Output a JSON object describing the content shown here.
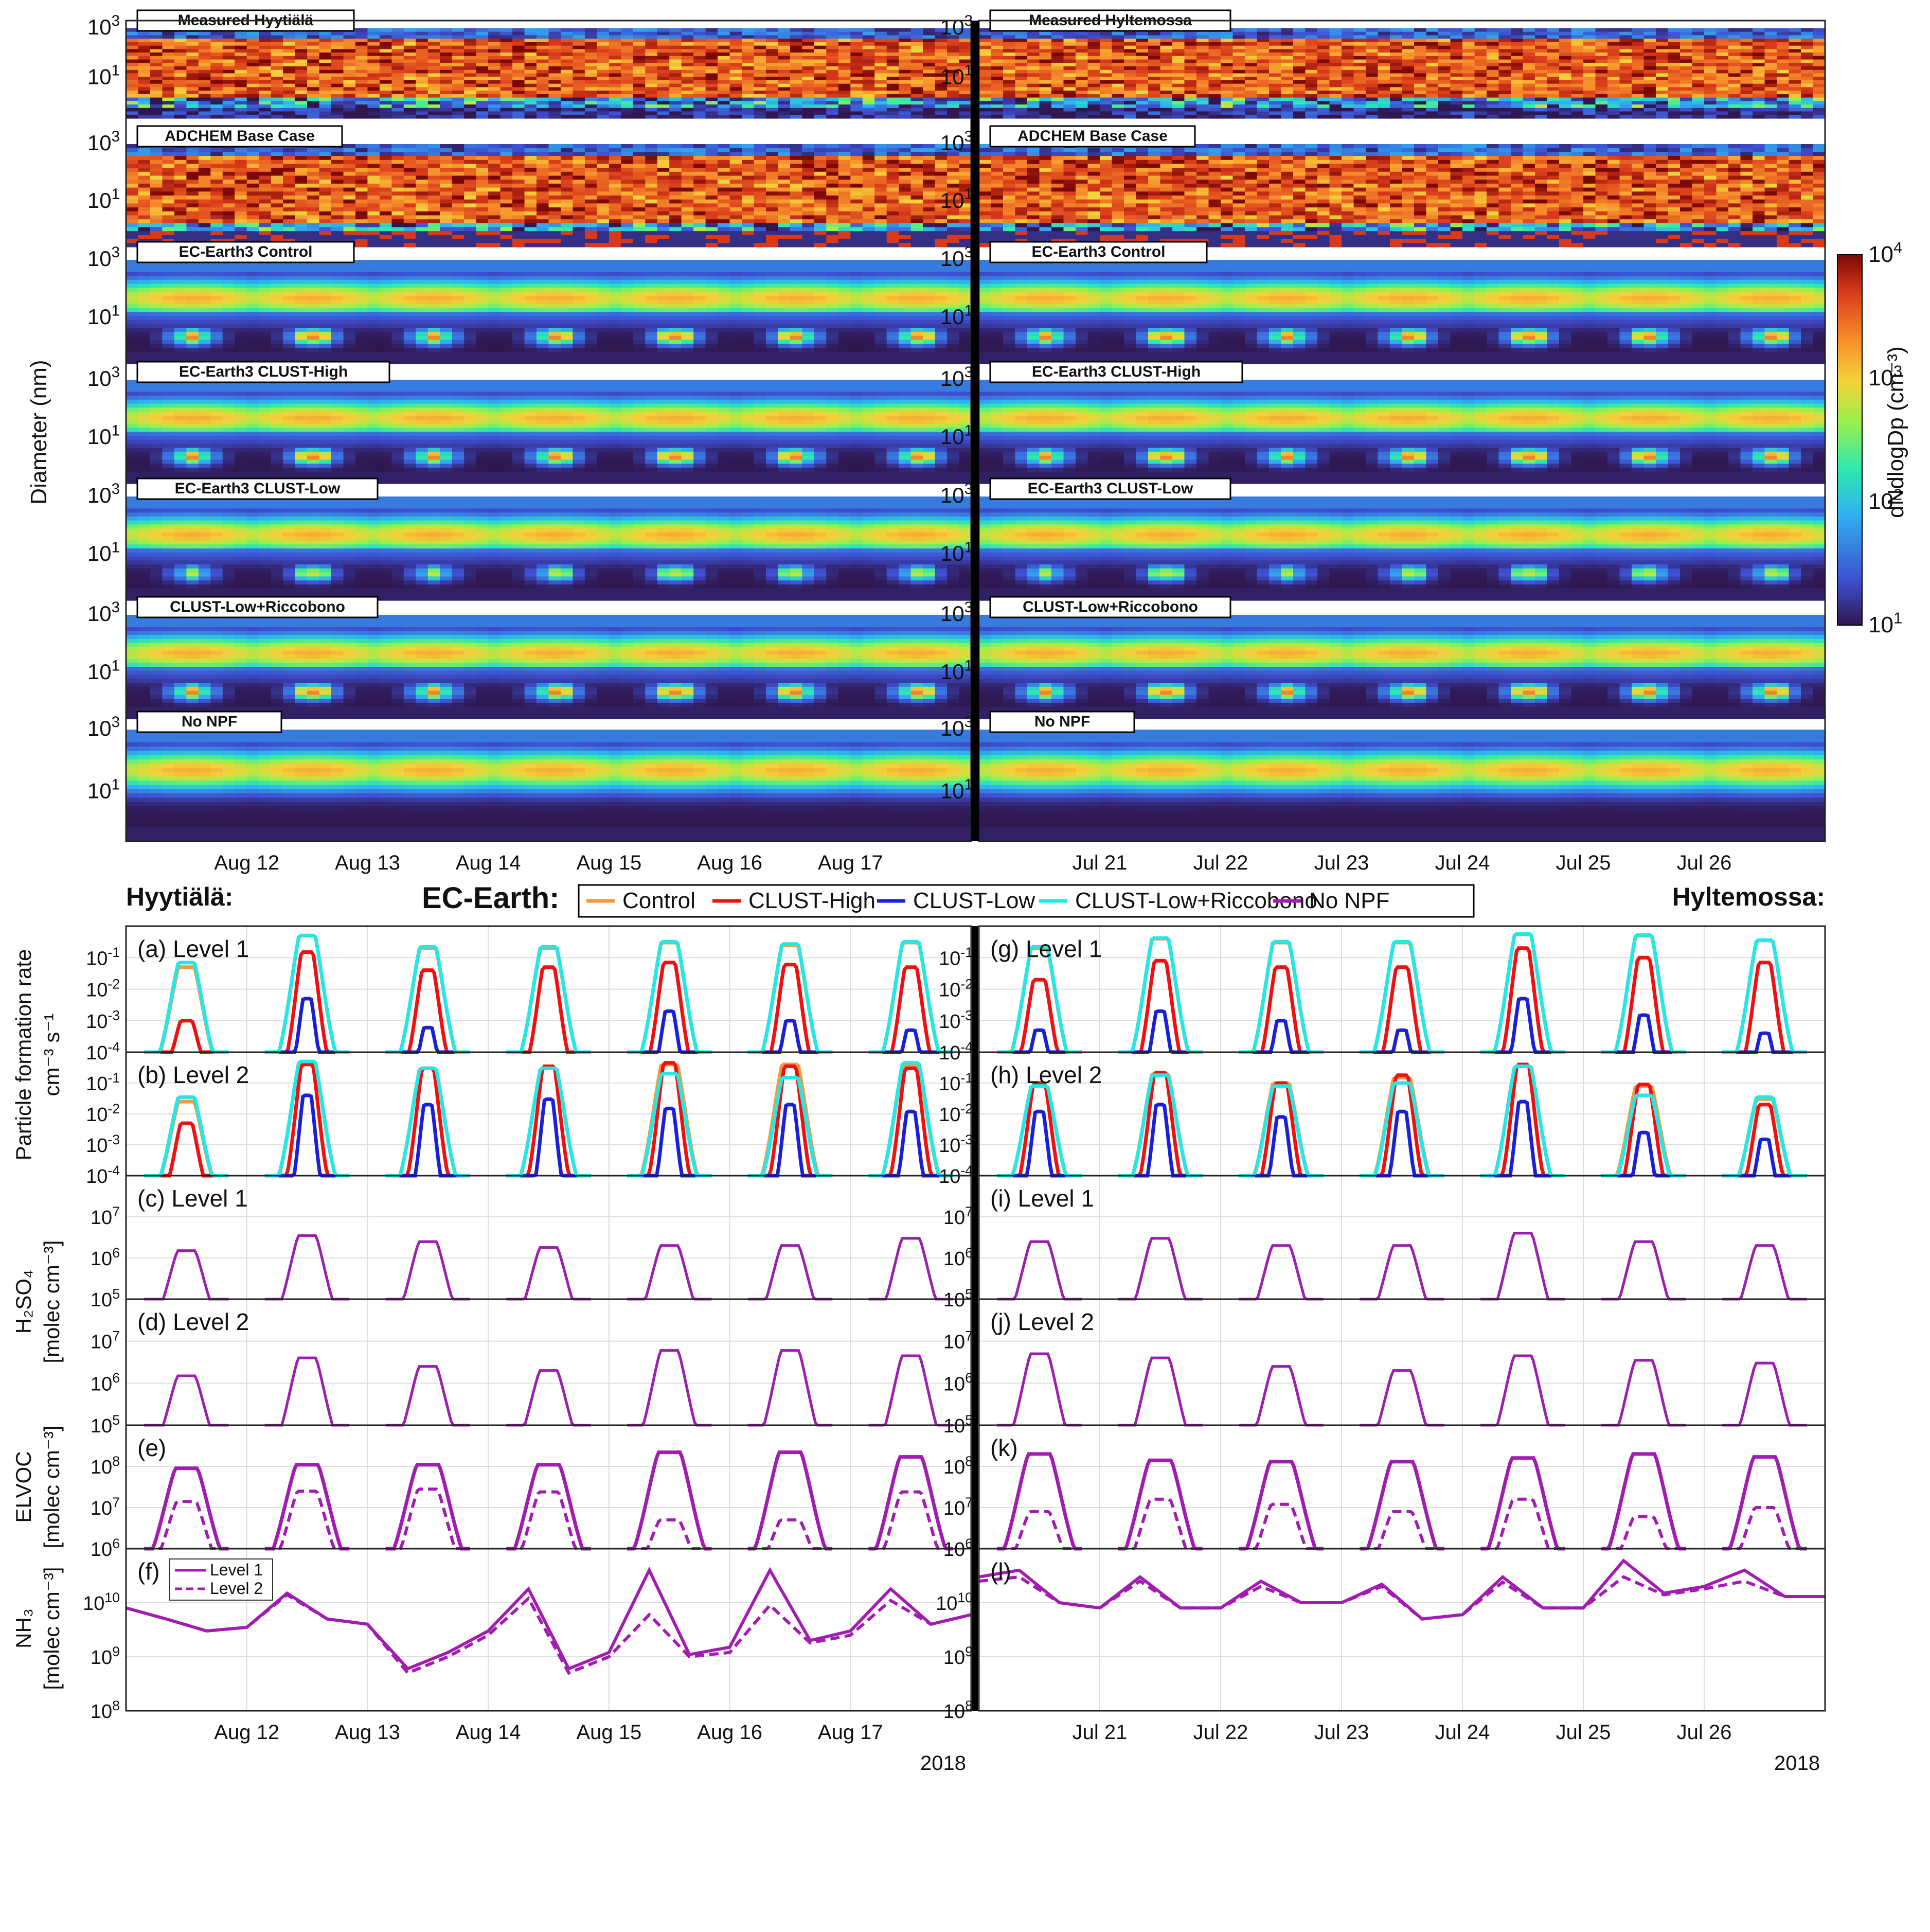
{
  "colorbar": {
    "label": "dNdlogDp (cm⁻³)",
    "ticks": [
      "10^1",
      "10^2",
      "10^3",
      "10^4"
    ],
    "range": [
      1,
      4
    ]
  },
  "colors": {
    "Control": "#f39a3c",
    "CLUST-High": "#ee1111",
    "CLUST-Low": "#1a20d8",
    "CLUST-Low+Riccobono": "#27e6e6",
    "No NPF": "#a21cb2",
    "background": "#2f1750"
  },
  "sites": {
    "left_title": "Hyytiälä:",
    "right_title": "Hyltemossa:"
  },
  "heatmaps": {
    "ylabel": "Diameter (nm)",
    "yticks": [
      "10^3",
      "10^1"
    ],
    "left_panels": [
      "Measured Hyytiälä",
      "ADCHEM Base Case",
      "EC-Earth3 Control",
      "EC-Earth3 CLUST-High",
      "EC-Earth3 CLUST-Low",
      "CLUST-Low+Riccobono",
      "No NPF"
    ],
    "right_panels": [
      "Measured Hyltemossa",
      "ADCHEM Base Case",
      "EC-Earth3 Control",
      "EC-Earth3 CLUST-High",
      "EC-Earth3 CLUST-Low",
      "CLUST-Low+Riccobono",
      "No NPF"
    ],
    "left_xticks": [
      "Aug 12",
      "Aug 13",
      "Aug 14",
      "Aug 15",
      "Aug 16",
      "Aug 17"
    ],
    "right_xticks": [
      "Jul 21",
      "Jul 22",
      "Jul 23",
      "Jul 24",
      "Jul 25",
      "Jul 26"
    ]
  },
  "legend": {
    "title": "EC-Earth:",
    "entries": [
      "Control",
      "CLUST-High",
      "CLUST-Low",
      "CLUST-Low+Riccobono",
      "No NPF"
    ]
  },
  "chart_data": [
    {
      "type": "line",
      "group": "Particle formation rate",
      "ylabel": "Particle formation rate",
      "yunit": "cm⁻³ s⁻¹",
      "yscale": "log",
      "ylim": [
        0.0001,
        1
      ],
      "yticks": [
        "10^-1",
        "10^-2",
        "10^-3",
        "10^-4"
      ],
      "panels": [
        {
          "label": "(a)  Level 1",
          "side": "left",
          "peaks": {
            "Control": [
              0.05,
              0.5,
              0.2,
              0.2,
              0.3,
              0.25,
              0.3
            ],
            "CLUST-High": [
              0.001,
              0.15,
              0.04,
              0.05,
              0.07,
              0.06,
              0.05
            ],
            "CLUST-Low": [
              null,
              0.005,
              0.0006,
              null,
              0.002,
              0.001,
              0.0005
            ],
            "CLUST-Low+Riccobono": [
              0.07,
              0.5,
              0.22,
              0.22,
              0.32,
              0.27,
              0.32
            ]
          }
        },
        {
          "label": "(g)  Level 1",
          "side": "right",
          "peaks": {
            "Control": [
              0.2,
              0.4,
              0.3,
              0.3,
              0.55,
              0.5,
              0.35
            ],
            "CLUST-High": [
              0.02,
              0.08,
              0.05,
              0.05,
              0.2,
              0.1,
              0.07
            ],
            "CLUST-Low": [
              0.0005,
              0.002,
              0.001,
              0.0005,
              0.005,
              0.0015,
              0.0004
            ],
            "CLUST-Low+Riccobono": [
              0.22,
              0.42,
              0.32,
              0.32,
              0.57,
              0.52,
              0.36
            ]
          }
        },
        {
          "label": "(b)  Level 2",
          "side": "left",
          "peaks": {
            "Control": [
              0.025,
              0.45,
              0.3,
              0.3,
              0.4,
              0.4,
              0.35
            ],
            "CLUST-High": [
              0.005,
              0.4,
              0.3,
              0.35,
              0.45,
              0.35,
              0.3
            ],
            "CLUST-Low": [
              null,
              0.04,
              0.02,
              0.03,
              0.015,
              0.02,
              0.012
            ],
            "CLUST-Low+Riccobono": [
              0.035,
              0.5,
              0.3,
              0.3,
              0.2,
              0.15,
              0.45
            ]
          }
        },
        {
          "label": "(h)  Level 2",
          "side": "right",
          "peaks": {
            "Control": [
              0.08,
              0.2,
              0.1,
              0.15,
              0.35,
              0.08,
              0.03
            ],
            "CLUST-High": [
              0.1,
              0.22,
              0.1,
              0.18,
              0.4,
              0.09,
              0.02
            ],
            "CLUST-Low": [
              0.012,
              0.02,
              0.008,
              0.012,
              0.025,
              0.0025,
              0.0015
            ],
            "CLUST-Low+Riccobono": [
              0.08,
              0.18,
              0.08,
              0.1,
              0.35,
              0.04,
              0.035
            ]
          }
        }
      ]
    },
    {
      "type": "line",
      "group": "H2SO4",
      "ylabel": "H₂SO₄",
      "yunit": "[molec cm⁻³]",
      "yscale": "log",
      "ylim": [
        100000.0,
        100000000.0
      ],
      "yticks": [
        "10^7",
        "10^6",
        "10^5"
      ],
      "panels": [
        {
          "label": "(c)  Level 1",
          "side": "left",
          "peaks": [
            1500000.0,
            3500000.0,
            2500000.0,
            1800000.0,
            2000000.0,
            2000000.0,
            3000000.0
          ]
        },
        {
          "label": "(i)  Level 1",
          "side": "right",
          "peaks": [
            2500000.0,
            3000000.0,
            2000000.0,
            2000000.0,
            4000000.0,
            2500000.0,
            2000000.0
          ]
        },
        {
          "label": "(d)  Level 2",
          "side": "left",
          "peaks": [
            1500000.0,
            4000000.0,
            2500000.0,
            2000000.0,
            6000000.0,
            6000000.0,
            4500000.0
          ]
        },
        {
          "label": "(j)  Level 2",
          "side": "right",
          "peaks": [
            5000000.0,
            4000000.0,
            2500000.0,
            2000000.0,
            4500000.0,
            3500000.0,
            3000000.0
          ]
        }
      ]
    },
    {
      "type": "line",
      "group": "ELVOC",
      "ylabel": "ELVOC",
      "yunit": "[molec cm⁻³]",
      "yscale": "log",
      "ylim": [
        1000000.0,
        1000000000.0
      ],
      "yticks": [
        "10^8",
        "10^7",
        "10^6"
      ],
      "panels": [
        {
          "label": "(e)",
          "side": "left",
          "peaks_level1": [
            90000000.0,
            110000000.0,
            110000000.0,
            110000000.0,
            220000000.0,
            220000000.0,
            170000000.0
          ],
          "peaks_level2": [
            14000000.0,
            25000000.0,
            28000000.0,
            24000000.0,
            5000000.0,
            5000000.0,
            24000000.0
          ]
        },
        {
          "label": "(k)",
          "side": "right",
          "peaks_level1": [
            200000000.0,
            140000000.0,
            130000000.0,
            130000000.0,
            160000000.0,
            200000000.0,
            170000000.0
          ],
          "peaks_level2": [
            8000000.0,
            16000000.0,
            12000000.0,
            8000000.0,
            16000000.0,
            6000000.0,
            10000000.0
          ]
        }
      ]
    },
    {
      "type": "line",
      "group": "NH3",
      "ylabel": "NH₃",
      "yunit": "[molec cm⁻³]",
      "yscale": "log",
      "ylim": [
        100000000.0,
        100000000000.0
      ],
      "yticks": [
        "10^10",
        "10^9",
        "10^8"
      ],
      "legend": [
        "Level 1",
        "Level 2"
      ],
      "panels": [
        {
          "label": "(f)",
          "side": "left",
          "level1": [
            8000000000.0,
            5000000000.0,
            3000000000.0,
            3500000000.0,
            15000000000.0,
            5000000000.0,
            4000000000.0,
            600000000.0,
            1200000000.0,
            3000000000.0,
            18000000000.0,
            600000000.0,
            1200000000.0,
            40000000000.0,
            1100000000.0,
            1500000000.0,
            40000000000.0,
            2000000000.0,
            3000000000.0,
            18000000000.0,
            4000000000.0,
            6000000000.0
          ],
          "level2": [
            8000000000.0,
            5000000000.0,
            3000000000.0,
            3500000000.0,
            14000000000.0,
            5000000000.0,
            4000000000.0,
            500000000.0,
            1000000000.0,
            2500000000.0,
            12000000000.0,
            500000000.0,
            1000000000.0,
            6000000000.0,
            1000000000.0,
            1200000000.0,
            9000000000.0,
            1800000000.0,
            2500000000.0,
            11000000000.0,
            4000000000.0,
            6000000000.0
          ]
        },
        {
          "label": "(l)",
          "side": "right",
          "level1": [
            30000000000.0,
            40000000000.0,
            10000000000.0,
            8000000000.0,
            30000000000.0,
            8000000000.0,
            8000000000.0,
            25000000000.0,
            10000000000.0,
            10000000000.0,
            22000000000.0,
            5000000000.0,
            6000000000.0,
            30000000000.0,
            8000000000.0,
            8000000000.0,
            60000000000.0,
            15000000000.0,
            20000000000.0,
            40000000000.0,
            13000000000.0,
            13000000000.0
          ],
          "level2": [
            25000000000.0,
            30000000000.0,
            10000000000.0,
            8000000000.0,
            25000000000.0,
            8000000000.0,
            8000000000.0,
            20000000000.0,
            10000000000.0,
            10000000000.0,
            20000000000.0,
            5000000000.0,
            6000000000.0,
            24000000000.0,
            8000000000.0,
            8000000000.0,
            30000000000.0,
            14000000000.0,
            18000000000.0,
            25000000000.0,
            13000000000.0,
            13000000000.0
          ]
        }
      ]
    }
  ],
  "lower_xticks": {
    "left": [
      "Aug 12",
      "Aug 13",
      "Aug 14",
      "Aug 15",
      "Aug 16",
      "Aug 17"
    ],
    "right": [
      "Jul 21",
      "Jul 22",
      "Jul 23",
      "Jul 24",
      "Jul 25",
      "Jul 26"
    ],
    "year_left": "2018",
    "year_right": "2018"
  }
}
